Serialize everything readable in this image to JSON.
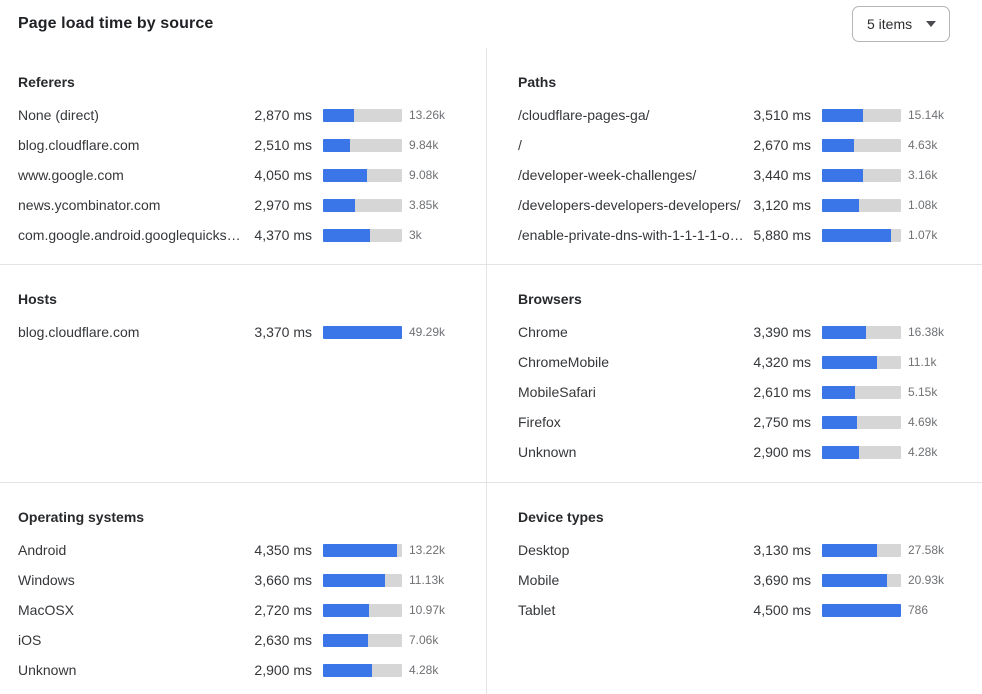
{
  "header": {
    "title": "Page load time by source",
    "dropdown": {
      "value": "5 items"
    }
  },
  "colors": {
    "bar_fill": "#3b76e8",
    "bar_track": "#d6d6d6",
    "divider": "#e3e3e3"
  },
  "chart_data": {
    "type": "bar",
    "unit": "ms",
    "note": "horizontal bars, fill = ms / scale_max, count shown at right",
    "panels": [
      {
        "id": "referers",
        "title": "Referers",
        "scale_max": 7350,
        "rows": [
          {
            "label": "None (direct)",
            "ms": 2870,
            "ms_text": "2,870 ms",
            "count": "13.26k"
          },
          {
            "label": "blog.cloudflare.com",
            "ms": 2510,
            "ms_text": "2,510 ms",
            "count": "9.84k"
          },
          {
            "label": "www.google.com",
            "ms": 4050,
            "ms_text": "4,050 ms",
            "count": "9.08k"
          },
          {
            "label": "news.ycombinator.com",
            "ms": 2970,
            "ms_text": "2,970 ms",
            "count": "3.85k"
          },
          {
            "label": "com.google.android.googlequicksearc...",
            "ms": 4370,
            "ms_text": "4,370 ms",
            "count": "3k"
          }
        ]
      },
      {
        "id": "paths",
        "title": "Paths",
        "scale_max": 6700,
        "rows": [
          {
            "label": "/cloudflare-pages-ga/",
            "ms": 3510,
            "ms_text": "3,510 ms",
            "count": "15.14k"
          },
          {
            "label": "/",
            "ms": 2670,
            "ms_text": "2,670 ms",
            "count": "4.63k"
          },
          {
            "label": "/developer-week-challenges/",
            "ms": 3440,
            "ms_text": "3,440 ms",
            "count": "3.16k"
          },
          {
            "label": "/developers-developers-developers/",
            "ms": 3120,
            "ms_text": "3,120 ms",
            "count": "1.08k"
          },
          {
            "label": "/enable-private-dns-with-1-1-1-1-on-...",
            "ms": 5880,
            "ms_text": "5,880 ms",
            "count": "1.07k"
          }
        ]
      },
      {
        "id": "hosts",
        "title": "Hosts",
        "scale_max": 3370,
        "rows": [
          {
            "label": "blog.cloudflare.com",
            "ms": 3370,
            "ms_text": "3,370 ms",
            "count": "49.29k"
          }
        ]
      },
      {
        "id": "browsers",
        "title": "Browsers",
        "scale_max": 6150,
        "rows": [
          {
            "label": "Chrome",
            "ms": 3390,
            "ms_text": "3,390 ms",
            "count": "16.38k"
          },
          {
            "label": "ChromeMobile",
            "ms": 4320,
            "ms_text": "4,320 ms",
            "count": "11.1k"
          },
          {
            "label": "MobileSafari",
            "ms": 2610,
            "ms_text": "2,610 ms",
            "count": "5.15k"
          },
          {
            "label": "Firefox",
            "ms": 2750,
            "ms_text": "2,750 ms",
            "count": "4.69k"
          },
          {
            "label": "Unknown",
            "ms": 2900,
            "ms_text": "2,900 ms",
            "count": "4.28k"
          }
        ]
      },
      {
        "id": "operating-systems",
        "title": "Operating systems",
        "scale_max": 4650,
        "rows": [
          {
            "label": "Android",
            "ms": 4350,
            "ms_text": "4,350 ms",
            "count": "13.22k"
          },
          {
            "label": "Windows",
            "ms": 3660,
            "ms_text": "3,660 ms",
            "count": "11.13k"
          },
          {
            "label": "MacOSX",
            "ms": 2720,
            "ms_text": "2,720 ms",
            "count": "10.97k"
          },
          {
            "label": "iOS",
            "ms": 2630,
            "ms_text": "2,630 ms",
            "count": "7.06k"
          },
          {
            "label": "Unknown",
            "ms": 2900,
            "ms_text": "2,900 ms",
            "count": "4.28k"
          }
        ]
      },
      {
        "id": "device-types",
        "title": "Device types",
        "scale_max": 4500,
        "rows": [
          {
            "label": "Desktop",
            "ms": 3130,
            "ms_text": "3,130 ms",
            "count": "27.58k"
          },
          {
            "label": "Mobile",
            "ms": 3690,
            "ms_text": "3,690 ms",
            "count": "20.93k"
          },
          {
            "label": "Tablet",
            "ms": 4500,
            "ms_text": "4,500 ms",
            "count": "786"
          }
        ]
      }
    ]
  }
}
